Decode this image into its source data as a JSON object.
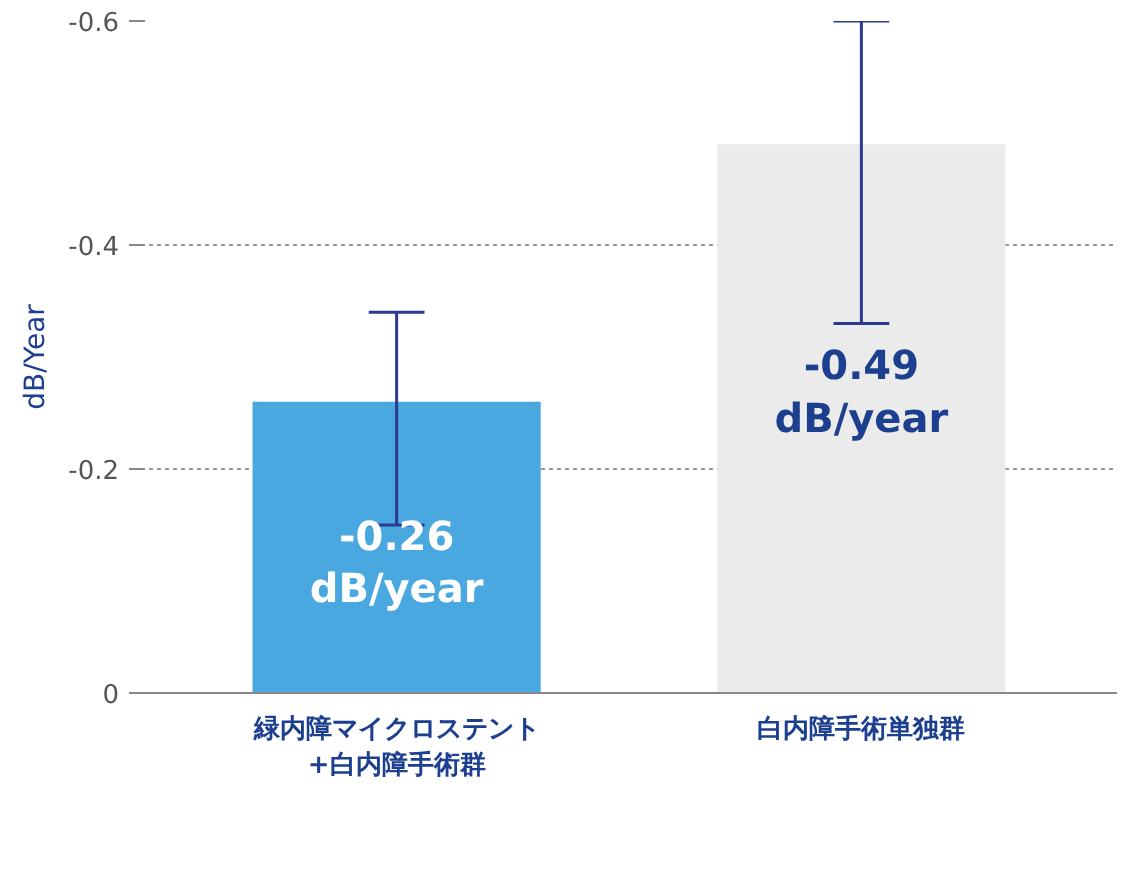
{
  "chart_data": {
    "type": "bar",
    "ylabel": "dB/Year",
    "categories": [
      "緑内障マイクロステント+白内障手術群",
      "白内障手術単独群"
    ],
    "values": [
      -0.26,
      -0.49
    ],
    "colors": [
      "#4aa8e0",
      "#ebebeb"
    ],
    "errors": [
      [
        -0.34,
        -0.15
      ],
      [
        -0.6,
        -0.33
      ]
    ],
    "value_labels": [
      "-0.26\ndB/year",
      "-0.49\ndB/year"
    ],
    "ylim": [
      0,
      -0.6
    ],
    "yticks": [
      0,
      -0.2,
      -0.4,
      -0.6
    ],
    "grid": "y"
  }
}
